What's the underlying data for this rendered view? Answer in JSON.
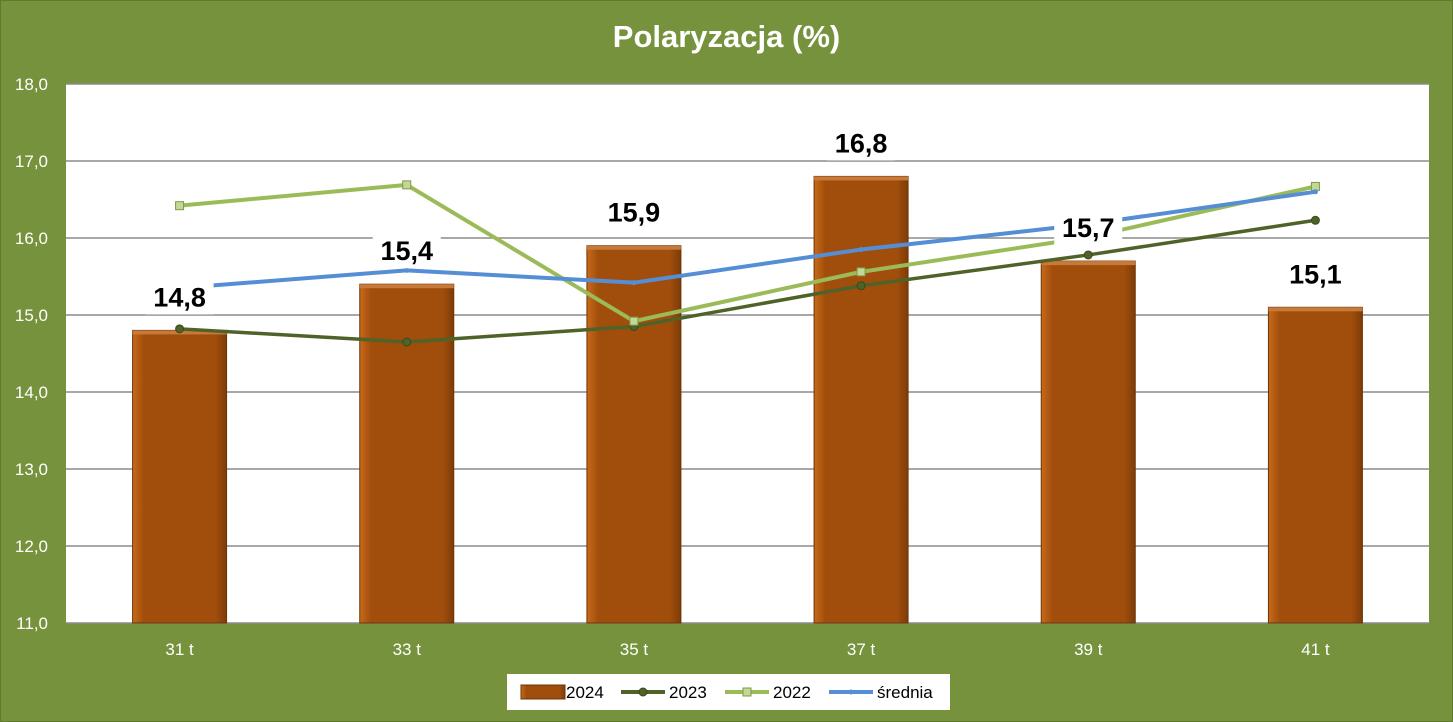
{
  "chart_data": {
    "type": "bar",
    "title": "Polaryzacja (%)",
    "xlabel": "",
    "ylabel": "",
    "categories": [
      "31 t",
      "33 t",
      "35 t",
      "37 t",
      "39 t",
      "41 t"
    ],
    "ylim": [
      11.0,
      18.0
    ],
    "yticks": [
      11.0,
      12.0,
      13.0,
      14.0,
      15.0,
      16.0,
      17.0,
      18.0
    ],
    "ytick_labels": [
      "11,0",
      "12,0",
      "13,0",
      "14,0",
      "15,0",
      "16,0",
      "17,0",
      "18,0"
    ],
    "grid": true,
    "legend_position": "bottom",
    "series": [
      {
        "name": "2024",
        "type": "bar",
        "color": "#a14e0c",
        "values": [
          14.8,
          15.4,
          15.9,
          16.8,
          15.7,
          15.1
        ],
        "data_labels": [
          "14,8",
          "15,4",
          "15,9",
          "16,8",
          "15,7",
          "15,1"
        ]
      },
      {
        "name": "2023",
        "type": "line",
        "color": "#4f6228",
        "marker": "circle",
        "values": [
          14.82,
          14.65,
          14.85,
          15.38,
          15.78,
          16.23
        ]
      },
      {
        "name": "2022",
        "type": "line",
        "color": "#9bbb59",
        "marker": "square",
        "values": [
          16.42,
          16.69,
          14.92,
          15.56,
          16.01,
          16.67
        ]
      },
      {
        "name": "średnia",
        "type": "line",
        "color": "#558ed5",
        "marker": "diamond",
        "values": [
          15.35,
          15.58,
          15.42,
          15.85,
          16.18,
          16.6
        ]
      }
    ]
  }
}
